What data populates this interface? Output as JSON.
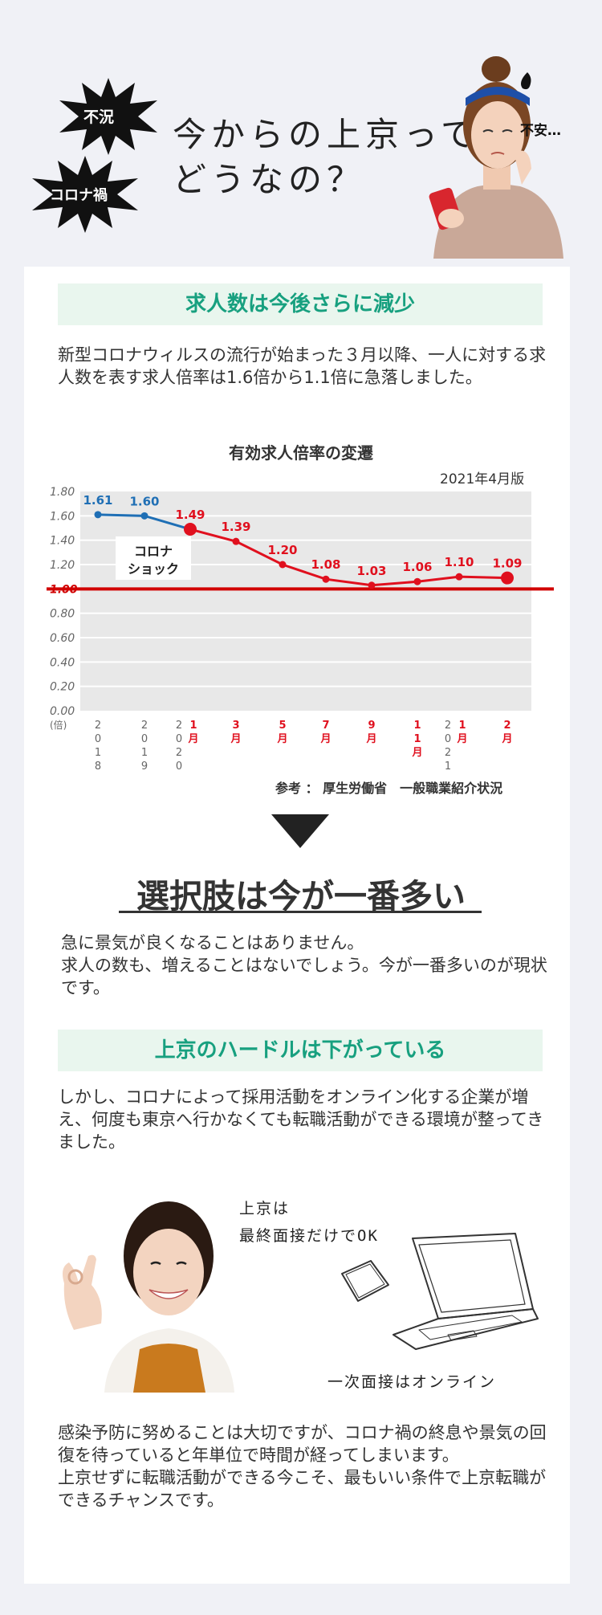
{
  "header": {
    "burst_top": "不況",
    "burst_bottom": "コロナ禍",
    "title_line1": "今からの上京って",
    "title_line2": "どうなの？",
    "anxiety": "不安…"
  },
  "section1": {
    "heading": "求人数は今後さらに減少",
    "body": "新型コロナウィルスの流行が始まった３月以降、一人に対する求人数を表す求人倍率は1.6倍から1.1倍に急落しました。"
  },
  "chart_data": {
    "type": "line",
    "title": "有効求人倍率の変遷",
    "version": "2021年4月版",
    "ylabel": "(倍)",
    "ylim": [
      0,
      1.8
    ],
    "yticks": [
      "1.80",
      "1.60",
      "1.40",
      "1.20",
      "1.00",
      "0.80",
      "0.60",
      "0.40",
      "0.20",
      "0.00"
    ],
    "x": [
      "2018",
      "2019",
      "2020 1月",
      "3月",
      "5月",
      "7月",
      "9月",
      "11月",
      "2021 1月",
      "2月"
    ],
    "xlabels": [
      {
        "year": "2018",
        "month": ""
      },
      {
        "year": "2019",
        "month": ""
      },
      {
        "year": "2020",
        "month": "1月"
      },
      {
        "year": "",
        "month": "3月"
      },
      {
        "year": "",
        "month": "5月"
      },
      {
        "year": "",
        "month": "7月"
      },
      {
        "year": "",
        "month": "9月"
      },
      {
        "year": "",
        "month": "11月"
      },
      {
        "year": "2021",
        "month": "1月"
      },
      {
        "year": "",
        "month": "2月"
      }
    ],
    "values": [
      1.61,
      1.6,
      1.49,
      1.39,
      1.2,
      1.08,
      1.03,
      1.06,
      1.1,
      1.09
    ],
    "value_labels": [
      "1.61",
      "1.60",
      "1.49",
      "1.39",
      "1.20",
      "1.08",
      "1.03",
      "1.06",
      "1.10",
      "1.09"
    ],
    "reference_line": {
      "value": 1.0,
      "label": "1.00"
    },
    "annotation": [
      "コロナ",
      "ショック"
    ],
    "colors": {
      "pre": "#1f6fb5",
      "post": "#e0101e",
      "ref": "#d10000",
      "grid_bg": "#e8e8e8"
    },
    "grid": true,
    "source": "参考 ： 厚生労働省　一般職業紹介状況"
  },
  "section2": {
    "heading": "選択肢は今が一番多い",
    "body_line1": "急に景気が良くなることはありません。",
    "body_line2": "求人の数も、増えることはないでしょう。今が一番多いのが現状です。"
  },
  "section3": {
    "heading": "上京のハードルは下がっている",
    "body": "しかし、コロナによって採用活動をオンライン化する企業が増え、何度も東京へ行かなくても転職活動ができる環境が整ってきました。",
    "note1_line1": "上京は",
    "note1_line2": "最終面接だけでOK",
    "note2": "一次面接はオンライン"
  },
  "section4": {
    "body_line1": "感染予防に努めることは大切ですが、コロナ禍の終息や景気の回復を待っていると年単位で時間が経ってしまいます。",
    "body_line2": "上京せずに転職活動ができる今こそ、最もいい条件で上京転職ができるチャンスです。"
  }
}
